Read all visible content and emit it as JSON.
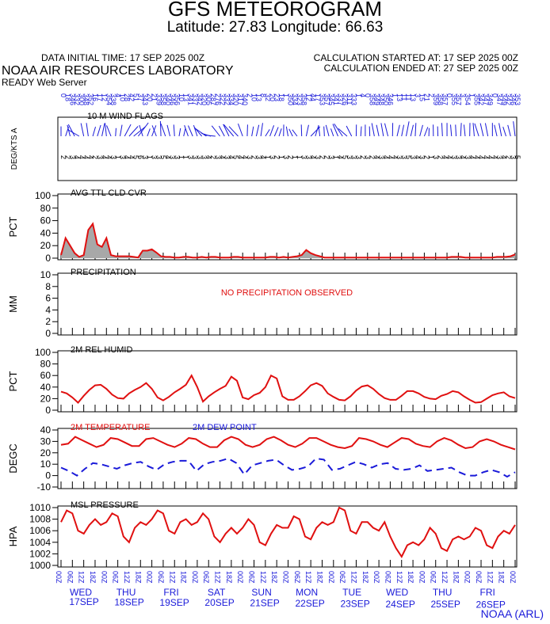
{
  "header": {
    "title": "GFS METEOROGRAM",
    "coords": "Latitude: 27.83 Longitude:  66.63",
    "init_time": "DATA INITIAL TIME: 17 SEP 2025 00Z",
    "calc_start": "CALCULATION STARTED AT: 17 SEP 2025 00Z",
    "calc_end": "CALCULATION ENDED AT: 27 SEP 2025 00Z",
    "lab": "NOAA AIR RESOURCES LABORATORY",
    "server": "READY Web Server",
    "credit": "NOAA (ARL)"
  },
  "chart_data": {
    "type": "line",
    "x_hours": [
      0,
      6,
      12,
      18,
      24,
      30,
      36,
      42,
      48,
      54,
      60,
      66,
      72,
      78,
      84,
      90,
      96,
      102,
      108,
      114,
      120,
      126,
      132,
      138,
      144,
      150,
      156,
      162,
      168,
      174,
      180,
      186,
      192,
      198,
      204,
      210,
      216,
      222,
      228,
      234,
      240
    ],
    "x_tick_labels": [
      "00Z",
      "06Z",
      "12Z",
      "18Z",
      "00Z",
      "06Z",
      "12Z",
      "18Z",
      "00Z",
      "06Z",
      "12Z",
      "18Z",
      "00Z",
      "06Z",
      "12Z",
      "18Z",
      "00Z",
      "06Z",
      "12Z",
      "18Z",
      "00Z",
      "06Z",
      "12Z",
      "18Z",
      "00Z",
      "06Z",
      "12Z",
      "18Z",
      "00Z",
      "06Z",
      "12Z",
      "18Z",
      "00Z",
      "06Z",
      "12Z",
      "18Z",
      "00Z",
      "06Z",
      "12Z",
      "18Z",
      "00Z"
    ],
    "days": [
      {
        "weekday": "WED",
        "date": "17SEP"
      },
      {
        "weekday": "THU",
        "date": "18SEP"
      },
      {
        "weekday": "FRI",
        "date": "19SEP"
      },
      {
        "weekday": "SAT",
        "date": "20SEP"
      },
      {
        "weekday": "SUN",
        "date": "21SEP"
      },
      {
        "weekday": "MON",
        "date": "22SEP"
      },
      {
        "weekday": "TUE",
        "date": "23SEP"
      },
      {
        "weekday": "WED",
        "date": "24SEP"
      },
      {
        "weekday": "THU",
        "date": "25SEP"
      },
      {
        "weekday": "FRI",
        "date": "26SEP"
      }
    ],
    "wind": {
      "title": "10 M  WIND FLAGS",
      "ylabel": "DEG/KTS  A",
      "directions": [
        "0",
        "18",
        "346",
        "332",
        "300",
        "348",
        "352",
        "16",
        "17",
        "12",
        "354",
        "338",
        "4",
        "10",
        "28",
        "42",
        "51",
        "37",
        "343",
        "20",
        "21",
        "339",
        "358",
        "340",
        "346",
        "356",
        "10",
        "13",
        "341",
        "337",
        "342",
        "320",
        "305",
        "287",
        "276",
        "322",
        "332",
        "334",
        "320",
        "317",
        "340",
        "2",
        "10",
        "13",
        "8",
        "32",
        "20",
        "23",
        "18",
        "1",
        "350",
        "334",
        "323",
        "358",
        "12",
        "44",
        "17",
        "353",
        "357",
        "345",
        "341",
        "337",
        "326",
        "311",
        "333",
        "1",
        "4",
        "0",
        "358",
        "349",
        "348",
        "350",
        "346",
        "1",
        "13",
        "11",
        "11",
        "13",
        "3",
        "15",
        "21",
        "2",
        "359",
        "358",
        "357",
        "0",
        "355",
        "357",
        "3",
        "354",
        "1",
        "355",
        "342",
        "347",
        "349",
        "0",
        "347",
        "349",
        "342",
        "346",
        "353"
      ],
      "speeds": [
        "2",
        "2",
        "3",
        "4",
        "4",
        "4",
        "4",
        "2",
        "3",
        "4",
        "4",
        "3",
        "1",
        "3",
        "4",
        "4",
        "5",
        "6",
        "3",
        "1",
        "3",
        "3",
        "5",
        "4",
        "3",
        "3",
        "1",
        "1",
        "3",
        "3",
        "3",
        "3",
        "4",
        "2",
        "3",
        "4",
        "3",
        "4",
        "5",
        "4",
        "4",
        "3",
        "2",
        "3",
        "4",
        "1",
        "3",
        "2",
        "1",
        "3",
        "2",
        "1",
        "1",
        "3",
        "3",
        "4",
        "3",
        "2",
        "2",
        "3",
        "1",
        "4",
        "5",
        "3",
        "3",
        "3",
        "2",
        "3",
        "2",
        "4",
        "3",
        "4",
        "4",
        "4",
        "3",
        "3",
        "5",
        "3",
        "4",
        "3",
        "2",
        "1",
        "3",
        "2",
        "4",
        "4",
        "3",
        "3",
        "4",
        "3",
        "4",
        "4",
        "4",
        "4",
        "4",
        "4",
        "3",
        "4",
        "2",
        "3",
        "5"
      ]
    },
    "cloud": {
      "title": "AVG TTL CLD CVR",
      "ylabel": "PCT",
      "ylim": [
        0,
        100
      ],
      "yticks": [
        0,
        20,
        40,
        60,
        80,
        100
      ],
      "values": [
        5,
        32,
        20,
        8,
        2,
        5,
        45,
        55,
        22,
        18,
        32,
        5,
        3,
        3,
        3,
        3,
        2,
        1,
        12,
        12,
        14,
        9,
        3,
        2,
        2,
        1,
        1,
        2,
        2,
        1,
        1,
        2,
        1,
        2,
        2,
        1,
        1,
        1,
        2,
        2,
        1,
        1,
        1,
        1,
        1,
        1,
        2,
        2,
        1,
        2,
        1,
        2,
        3,
        5,
        13,
        8,
        5,
        3,
        1,
        1,
        1,
        1,
        1,
        1,
        1,
        1,
        1,
        1,
        1,
        1,
        1,
        1,
        1,
        1,
        1,
        1,
        1,
        1,
        1,
        1,
        1,
        1,
        1,
        1,
        1,
        1,
        2,
        2,
        2,
        1,
        1,
        1,
        1,
        1,
        1,
        1,
        2,
        2,
        2,
        3,
        6
      ]
    },
    "precip": {
      "title": "PRECIPITATION",
      "ylabel": "MM",
      "ylim": [
        0,
        10
      ],
      "yticks": [
        0,
        2,
        4,
        6,
        8,
        10
      ],
      "message": "NO PRECIPITATION OBSERVED"
    },
    "humidity": {
      "title": "2M REL HUMID",
      "ylabel": "PCT",
      "ylim": [
        0,
        100
      ],
      "yticks": [
        0,
        20,
        40,
        60,
        80,
        100
      ],
      "values": [
        32,
        29,
        22,
        13,
        25,
        35,
        43,
        44,
        37,
        27,
        21,
        20,
        29,
        35,
        40,
        47,
        37,
        22,
        17,
        23,
        31,
        37,
        44,
        60,
        40,
        15,
        24,
        31,
        37,
        42,
        58,
        51,
        22,
        19,
        26,
        30,
        40,
        60,
        55,
        24,
        18,
        18,
        24,
        33,
        43,
        47,
        42,
        29,
        23,
        18,
        17,
        24,
        34,
        41,
        43,
        37,
        28,
        21,
        18,
        18,
        25,
        33,
        33,
        29,
        23,
        20,
        19,
        25,
        28,
        33,
        31,
        24,
        18,
        13,
        14,
        20,
        26,
        29,
        31,
        24,
        21
      ]
    },
    "temperature": {
      "title": "2M TEMPERATURE",
      "dew_title": "2M   DEW POINT",
      "ylabel": "DEGC",
      "ylim": [
        -10,
        40
      ],
      "yticks": [
        -10,
        0,
        10,
        20,
        30,
        40
      ],
      "temp_values": [
        27,
        28,
        34,
        31,
        28,
        25,
        27,
        33,
        32,
        29,
        26,
        26,
        32,
        33,
        30,
        27,
        25,
        28,
        33,
        32,
        28,
        25,
        25,
        31,
        34,
        32,
        27,
        25,
        27,
        32,
        34,
        31,
        27,
        25,
        28,
        33,
        33,
        30,
        27,
        25,
        24,
        26,
        33,
        32,
        30,
        27,
        25,
        29,
        33,
        32,
        28,
        26,
        25,
        30,
        33,
        31,
        27,
        24,
        25,
        30,
        32,
        30,
        27,
        25,
        23
      ],
      "dew_values": [
        7,
        4,
        0,
        6,
        11,
        10,
        8,
        6,
        9,
        11,
        12,
        8,
        5,
        10,
        12,
        13,
        13,
        4,
        10,
        12,
        13,
        15,
        11,
        1,
        9,
        11,
        13,
        14,
        9,
        5,
        6,
        8,
        15,
        14,
        5,
        6,
        9,
        12,
        10,
        7,
        10,
        11,
        6,
        5,
        6,
        9,
        4,
        5,
        6,
        7,
        3,
        0,
        0,
        3,
        5,
        3,
        -1,
        3
      ]
    },
    "pressure": {
      "title": "MSL PRESSURE",
      "ylabel": "HPA",
      "ylim": [
        1000,
        1010
      ],
      "yticks": [
        1000,
        1002,
        1004,
        1006,
        1008,
        1010
      ],
      "values": [
        1007.5,
        1009.5,
        1009,
        1006,
        1005.5,
        1007,
        1008,
        1007,
        1007.5,
        1009,
        1008.5,
        1005,
        1004,
        1006.5,
        1007.5,
        1007,
        1008,
        1009.5,
        1009,
        1006,
        1005.5,
        1007.5,
        1008,
        1007,
        1007.5,
        1009,
        1008,
        1005,
        1004,
        1005.5,
        1006.5,
        1005.5,
        1006.5,
        1008,
        1007,
        1004,
        1003.5,
        1005.5,
        1007,
        1006.5,
        1006.5,
        1008.5,
        1008,
        1005,
        1004.5,
        1006.5,
        1007.5,
        1007,
        1007.5,
        1010,
        1009.5,
        1006,
        1005.5,
        1007.5,
        1007.5,
        1006.5,
        1006,
        1007.5,
        1005,
        1003,
        1001.5,
        1003.5,
        1004,
        1003.5,
        1004.5,
        1006.5,
        1005.5,
        1003,
        1002.5,
        1004.5,
        1005,
        1004.5,
        1005,
        1006.5,
        1006,
        1003.5,
        1003,
        1005,
        1006,
        1005.5,
        1007
      ]
    }
  }
}
